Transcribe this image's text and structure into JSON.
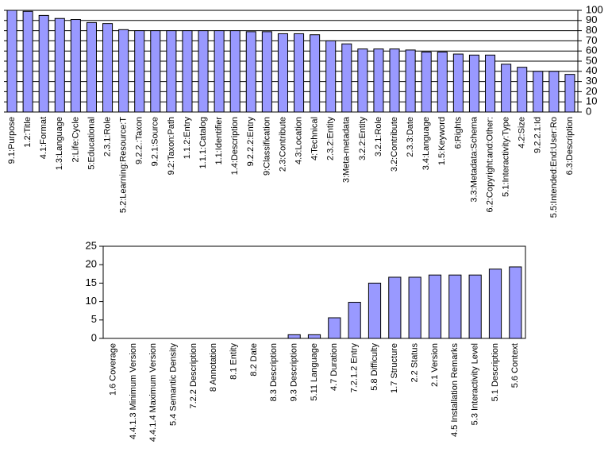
{
  "chart_data": [
    {
      "type": "bar",
      "color": "#9999ff",
      "grid": true,
      "y_axis_side": "right",
      "categories": [
        "9.1:Purpose",
        "1.2:Title",
        "4.1:Format",
        "1.3:Language",
        "2:Life:Cycle",
        "5:Educational",
        "2.3.1:Role",
        "5.2:Learning:Resource:T",
        "9.2.2.:Taxon",
        "9.2.1:Source",
        "9.2:Taxon:Path",
        "1.1.2:Entry",
        "1.1.1:Catalog",
        "1.1:Identifier",
        "1.4:Description",
        "9.2.2.2:Entry",
        "9:Classification",
        "2.3:Contribute",
        "4.3:Location",
        "4:Technical",
        "2.3.2:Entity",
        "3:Meta-metadata",
        "3.2.2:Entity",
        "3.2.1:Role",
        "3.2:Contribute",
        "2.3.3:Date",
        "3.4:Language",
        "1.5:Keyword",
        "6:Rights",
        "3.3:Metadata:Schema",
        "6.2:Copyright:and:Other:",
        "5.1:Interactivity:Type",
        "4.2:Size",
        "9.2.2.1:Id",
        "5.5:Intended:End:User:Ro",
        "6.3:Description"
      ],
      "values": [
        100,
        99,
        95,
        92,
        91,
        88,
        87,
        81,
        80,
        80,
        80,
        80,
        80,
        80,
        80,
        79,
        79,
        77,
        77,
        76,
        70,
        67,
        62,
        62,
        62,
        61,
        59,
        59,
        57,
        56,
        56,
        47,
        44,
        40,
        40,
        37
      ],
      "ylim": [
        0,
        100
      ],
      "yticks": [
        0,
        10,
        20,
        30,
        40,
        50,
        60,
        70,
        80,
        90,
        100
      ]
    },
    {
      "type": "bar",
      "color": "#9999ff",
      "grid": false,
      "y_axis_side": "left",
      "categories": [
        "1.6 Coverage",
        "4.4.1.3 Minimum Version",
        "4.4.1.4 Maximum Version",
        "5.4 Semantic Density",
        "7.2.2 Description",
        "8 Annotation",
        "8.1 Entity",
        "8.2 Date",
        "8.3 Description",
        "9.3 Description",
        "5.11 Language",
        "4.7 Duration",
        "7.2.1.2 Entry",
        "5.8 Difficulty",
        "1.7 Structure",
        "2.2 Status",
        "2.1 Version",
        "4.5 Installation Remarks",
        "5.3 Interactivity Level",
        "5.1 Description",
        "5.6 Context"
      ],
      "values": [
        0,
        0,
        0,
        0,
        0,
        0,
        0,
        0,
        0,
        1,
        1,
        5.6,
        9.8,
        15,
        16.6,
        16.6,
        17.2,
        17.2,
        17.2,
        18.8,
        19.4
      ],
      "ylim": [
        0,
        25
      ],
      "yticks": [
        0,
        5,
        10,
        15,
        20,
        25
      ]
    }
  ]
}
